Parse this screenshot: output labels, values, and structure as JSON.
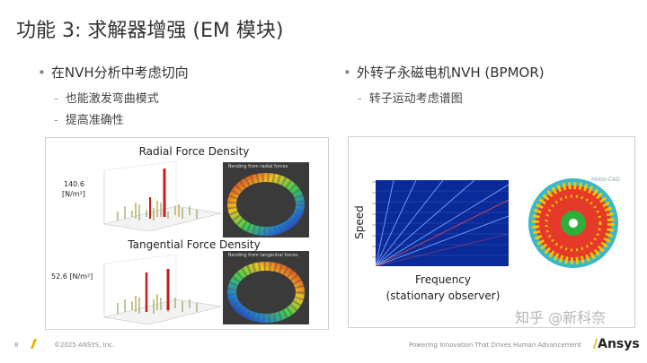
{
  "slide": {
    "title": "功能 3: 求解器增强 (EM 模块)",
    "left_bullet": "在NVH分析中考虑切向",
    "left_subs": [
      "也能激发弯曲模式",
      "提高准确性"
    ],
    "right_bullet": "外转子永磁电机NVH (BPMOR)",
    "right_subs": [
      "转子运动考虑谱图"
    ]
  },
  "left_panel": {
    "radial_title": "Radial Force Density",
    "radial_value": "140.6",
    "radial_unit": "[N/m²]",
    "radial_caption": "Bending from radial forces",
    "tangential_title": "Tangential Force Density",
    "tangential_value": "52.6 [N/m²]",
    "tangential_caption": "Bending from tangential forces"
  },
  "right_panel": {
    "speed_label": "Speed",
    "frequency_label": "Frequency",
    "observer_label": "(stationary observer)",
    "motor_label": "Motor-CAD"
  },
  "footer": {
    "page": "8",
    "copyright": "©2025 ANSYS, Inc.",
    "tagline": "Powering Innovation That Drives Human Advancement",
    "brand": "Ansys",
    "watermark": "知乎 @新科奈"
  },
  "colors": {
    "accent_yellow": "#f0b400",
    "campbell_bg": "#0b2a9a",
    "rotor_red": "#e53a2a",
    "magnet_yellow": "#f5c500",
    "stator_teal": "#3bb8c8"
  }
}
